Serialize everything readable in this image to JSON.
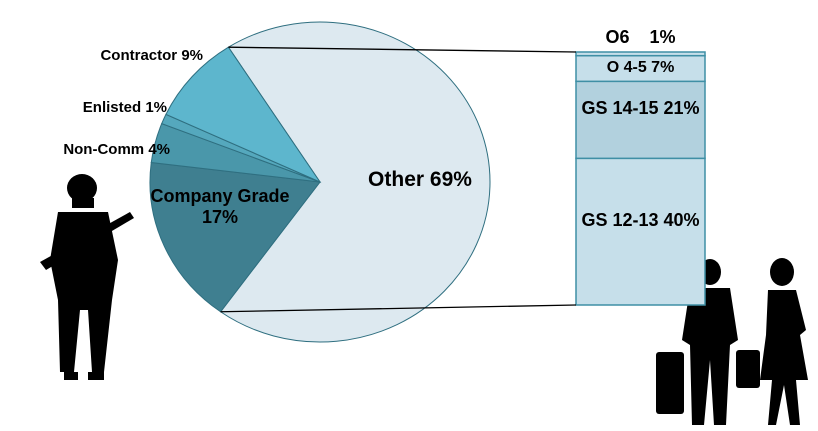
{
  "chart_data": {
    "type": "pie",
    "categories": [
      "Other",
      "Company Grade",
      "Non-Comm",
      "Enlisted",
      "Contractor"
    ],
    "values": [
      69,
      17,
      4,
      1,
      9
    ],
    "value_labels": [
      "69%",
      "17%",
      "4%",
      "1%",
      "9%"
    ],
    "colors": [
      "#dde9f0",
      "#3f7f90",
      "#4a97aa",
      "#55a8bd",
      "#5db6cd"
    ],
    "breakdown": {
      "categories": [
        "GS 12-13",
        "GS 14-15",
        "O 4-5",
        "O6"
      ],
      "values": [
        40,
        21,
        7,
        1
      ],
      "value_labels": [
        "40%",
        "21%",
        "7%",
        "1%"
      ],
      "colors": [
        "#c6dfea",
        "#b2d1de",
        "#c6dfea",
        "#c6dfea"
      ]
    }
  }
}
